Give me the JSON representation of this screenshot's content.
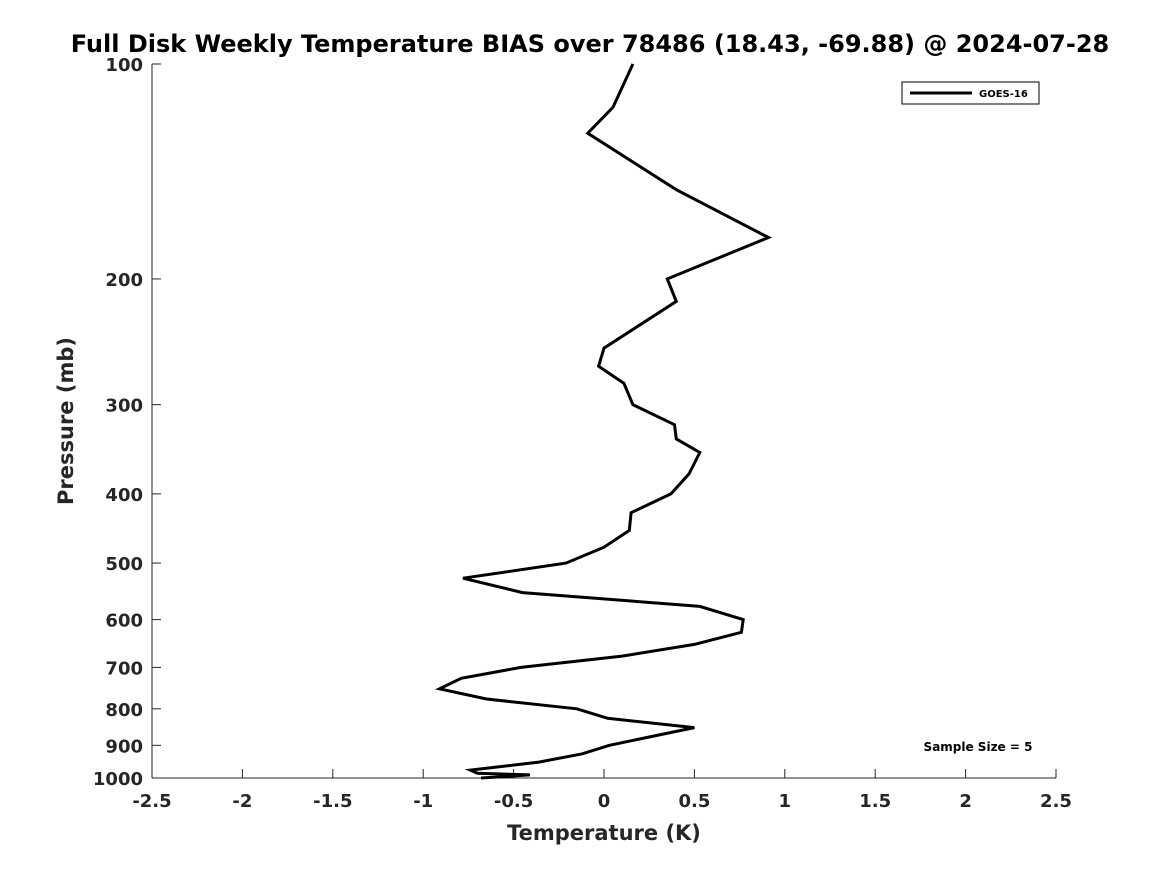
{
  "chart_data": {
    "type": "line",
    "title": "Full Disk Weekly Temperature BIAS over 78486 (18.43, -69.88) @ 2024-07-28",
    "xlabel": "Temperature (K)",
    "ylabel": "Pressure (mb)",
    "xlim": [
      -2.5,
      2.5
    ],
    "ylim": [
      1000,
      100
    ],
    "y_scale": "log",
    "y_reversed": true,
    "x_ticks": [
      -2.5,
      -2,
      -1.5,
      -1,
      -0.5,
      0,
      0.5,
      1,
      1.5,
      2,
      2.5
    ],
    "x_tick_labels": [
      "-2.5",
      "-2",
      "-1.5",
      "-1",
      "-0.5",
      "0",
      "0.5",
      "1",
      "1.5",
      "2",
      "2.5"
    ],
    "y_ticks": [
      100,
      200,
      300,
      400,
      500,
      600,
      700,
      800,
      900,
      1000
    ],
    "y_tick_labels": [
      "100",
      "200",
      "300",
      "400",
      "500",
      "600",
      "700",
      "800",
      "900",
      "1000"
    ],
    "grid": false,
    "legend_position": "top-right",
    "annotation": "Sample Size = 5",
    "series": [
      {
        "name": "GOES-16",
        "color": "#000000",
        "x": [
          0.16,
          0.05,
          -0.09,
          0.4,
          0.91,
          0.35,
          0.4,
          0.0,
          -0.03,
          0.11,
          0.16,
          0.39,
          0.4,
          0.53,
          0.47,
          0.37,
          0.15,
          0.14,
          0.0,
          -0.21,
          -0.78,
          -0.45,
          0.53,
          0.77,
          0.76,
          0.5,
          0.1,
          -0.46,
          -0.79,
          -0.91,
          -0.65,
          -0.15,
          0.02,
          0.5,
          0.26,
          0.03,
          -0.12,
          -0.36,
          -0.74,
          -0.7,
          -0.41,
          -0.68
        ],
        "y": [
          100,
          115,
          125,
          150,
          175,
          200,
          215,
          250,
          265,
          280,
          300,
          320,
          335,
          350,
          375,
          400,
          425,
          450,
          475,
          500,
          525,
          550,
          575,
          600,
          625,
          650,
          675,
          700,
          725,
          750,
          775,
          800,
          825,
          850,
          875,
          900,
          925,
          950,
          975,
          985,
          990,
          1000
        ]
      }
    ]
  }
}
